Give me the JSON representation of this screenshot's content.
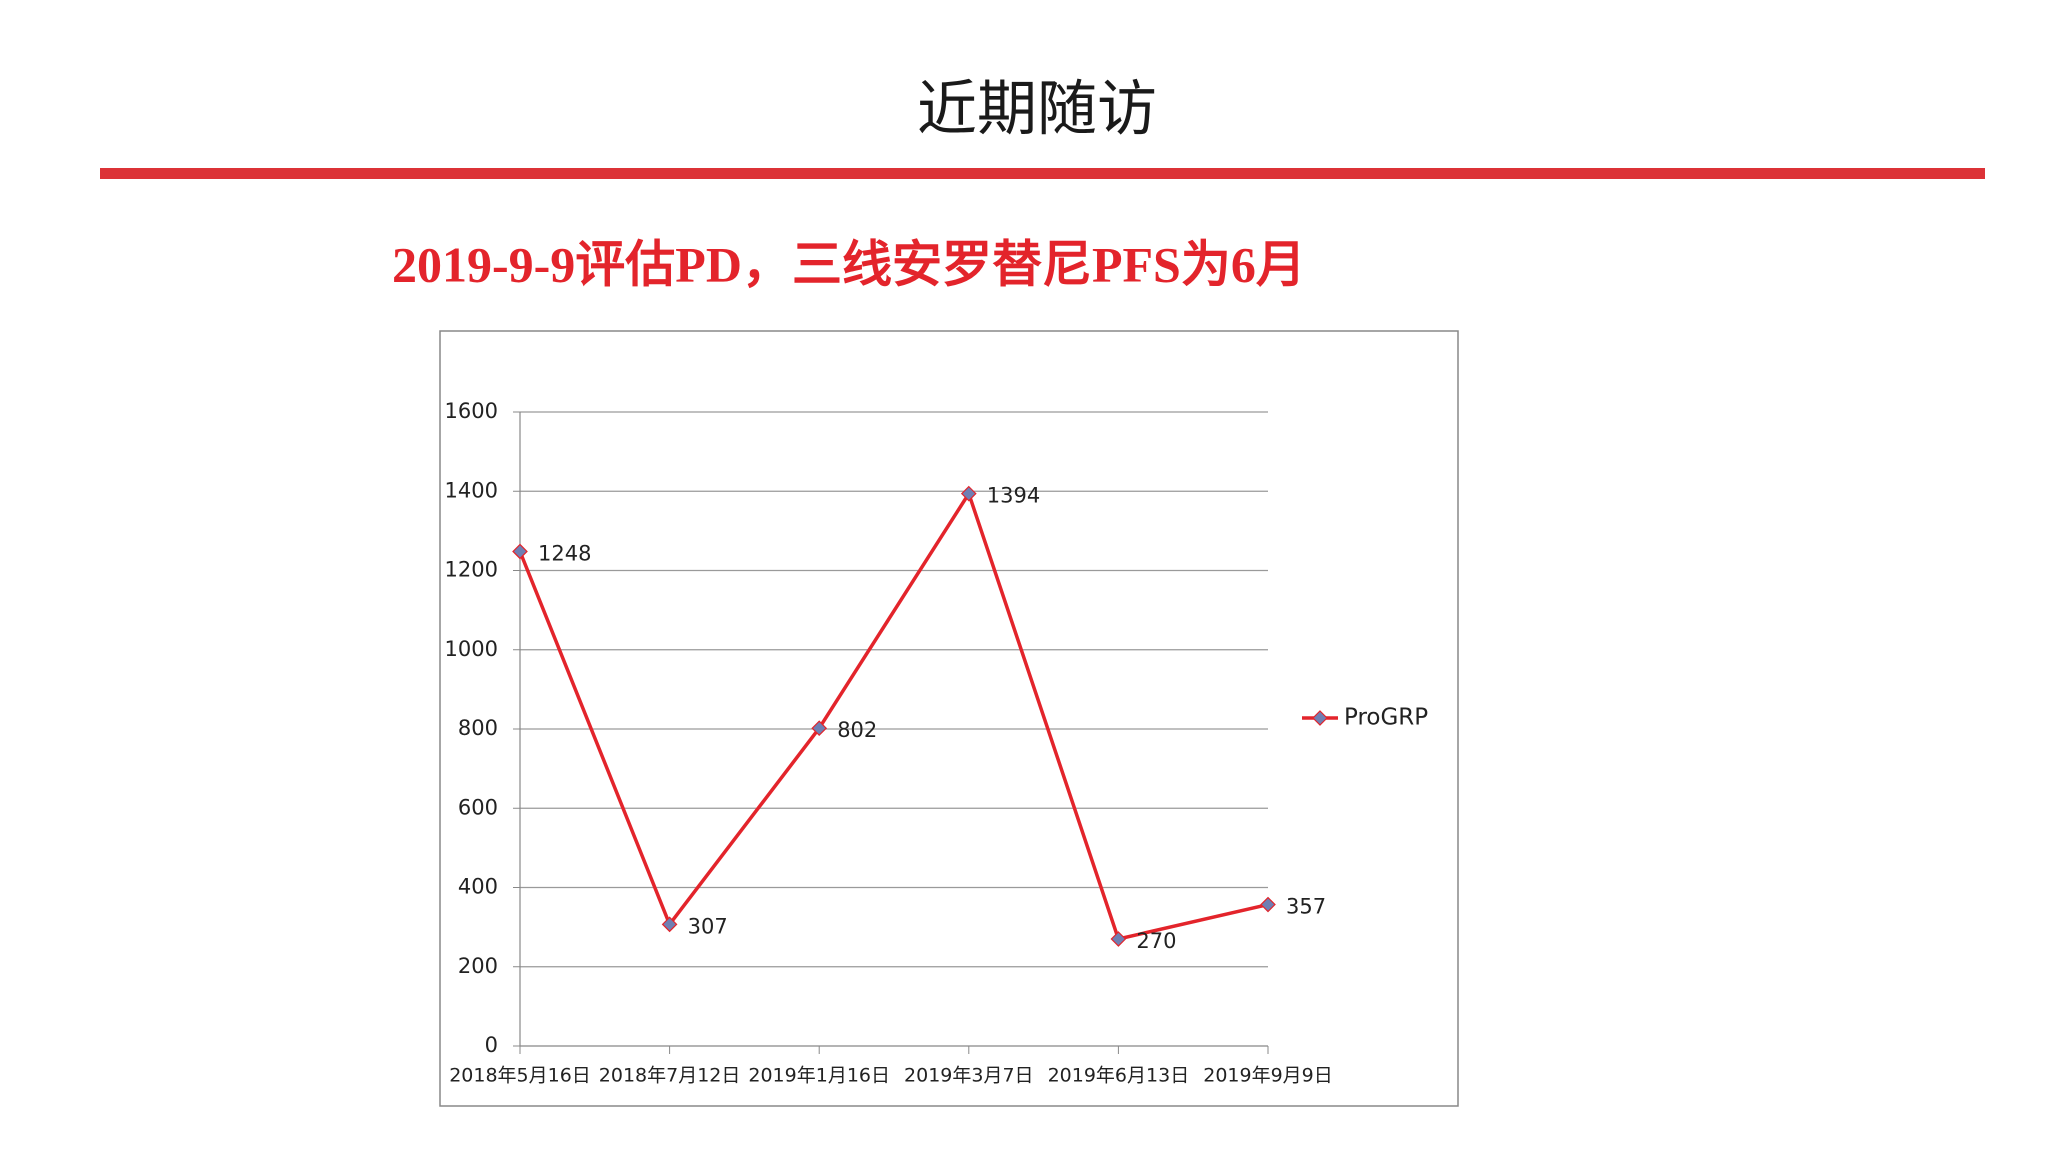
{
  "header": {
    "title": "近期随访",
    "subtitle": "2019-9-9评估PD，三线安罗替尼PFS为6月"
  },
  "chart_data": {
    "type": "line",
    "categories": [
      "2018年5月16日",
      "2018年7月12日",
      "2019年1月16日",
      "2019年3月7日",
      "2019年6月13日",
      "2019年9月9日"
    ],
    "series": [
      {
        "name": "ProGRP",
        "color": "#e3242b",
        "marker_color": "#6f7fb3",
        "values": [
          1248,
          307,
          802,
          1394,
          270,
          357
        ]
      }
    ],
    "ylim": [
      0,
      1600
    ],
    "yticks": [
      0,
      200,
      400,
      600,
      800,
      1000,
      1200,
      1400,
      1600
    ],
    "grid": true,
    "legend": "right"
  }
}
